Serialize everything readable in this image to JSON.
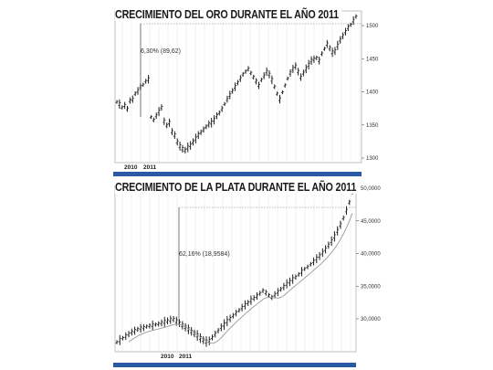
{
  "chart_data": [
    {
      "type": "ohlc",
      "title": "CRECIMIENTO DEL ORO DURANTE EL AÑO 2011",
      "annotation": "6,30% (89,62)",
      "year_labels": [
        "2010",
        "2011"
      ],
      "ytick_labels": [
        "1500",
        "1450",
        "1400",
        "1350",
        "1300"
      ],
      "ylim": [
        1300,
        1520
      ],
      "grid": true,
      "series": [
        {
          "values": [
            1388,
            1385,
            1380,
            1383,
            1378,
            1390,
            1392,
            1400,
            1404,
            1410,
            1413,
            1418,
            1421,
            1366,
            1362,
            1368,
            1374,
            1380,
            1360,
            1354,
            1358,
            1345,
            1340,
            1330,
            1324,
            1320,
            1318,
            1322,
            1325,
            1330,
            1335,
            1340,
            1344,
            1348,
            1352,
            1356,
            1358,
            1362,
            1368,
            1372,
            1378,
            1385,
            1392,
            1398,
            1404,
            1410,
            1416,
            1422,
            1428,
            1432,
            1436,
            1430,
            1424,
            1418,
            1412,
            1420,
            1426,
            1432,
            1428,
            1420,
            1410,
            1400,
            1392,
            1402,
            1412,
            1422,
            1430,
            1436,
            1440,
            1432,
            1424,
            1430,
            1436,
            1442,
            1448,
            1450,
            1452,
            1448,
            1458,
            1465,
            1472,
            1466,
            1460,
            1462,
            1470,
            1478,
            1484,
            1490,
            1496,
            1500,
            1506,
            1512
          ]
        }
      ]
    },
    {
      "type": "ohlc",
      "title": "CRECIMIENTO DE LA PLATA DURANTE EL AÑO 2011",
      "annotation": "62,16% (18,9584)",
      "year_labels": [
        "2010",
        "2011"
      ],
      "ytick_labels": [
        "50,0000",
        "45,0000",
        "40,0000",
        "35,0000",
        "30,0000"
      ],
      "ylim": [
        26000,
        50500
      ],
      "grid": true,
      "series": [
        {
          "values": [
            27400,
            27700,
            28000,
            28300,
            28600,
            28900,
            29100,
            29300,
            29450,
            29550,
            29700,
            29800,
            29900,
            30000,
            30100,
            30250,
            30400,
            30550,
            30700,
            30800,
            30500,
            30200,
            29900,
            29600,
            29300,
            29000,
            28700,
            28400,
            28000,
            27700,
            27500,
            27600,
            28100,
            28600,
            29100,
            29600,
            30000,
            30500,
            30900,
            31300,
            31700,
            32100,
            32500,
            32900,
            33200,
            33600,
            33900,
            34200,
            34600,
            35000,
            34700,
            34300,
            34000,
            34400,
            34800,
            35200,
            35600,
            36000,
            36300,
            36700,
            37000,
            37400,
            37800,
            38200,
            38500,
            38900,
            39300,
            39700,
            40100,
            40600,
            41100,
            41700,
            42300,
            43000,
            43800,
            44700,
            45700,
            46800,
            48000,
            49500
          ]
        }
      ]
    }
  ]
}
